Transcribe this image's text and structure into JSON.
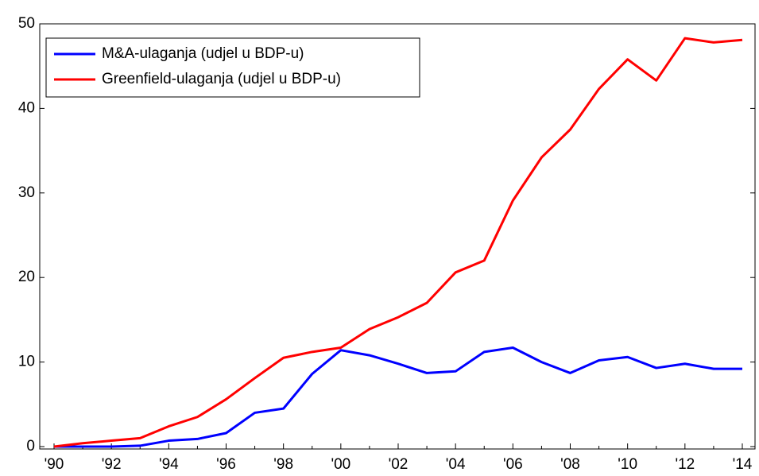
{
  "chart_data": {
    "type": "line",
    "categories": [
      "'90",
      null,
      "'92",
      null,
      "'94",
      null,
      "'96",
      null,
      "'98",
      null,
      "'00",
      null,
      "'02",
      null,
      "'04",
      null,
      "'06",
      null,
      "'08",
      null,
      "'10",
      null,
      "'12",
      null,
      "'14"
    ],
    "series": [
      {
        "name": "M&A-ulaganja (udjel u BDP-u)",
        "color": "#0000ff",
        "values": [
          0,
          0,
          0,
          0.1,
          0.7,
          0.9,
          1.6,
          4.0,
          4.5,
          8.6,
          11.4,
          10.8,
          9.8,
          8.7,
          8.9,
          11.2,
          11.7,
          10.0,
          8.7,
          10.2,
          10.6,
          9.3,
          9.8,
          9.2,
          9.2
        ]
      },
      {
        "name": "Greenfield-ulaganja (udjel u BDP-u)",
        "color": "#ff0000",
        "values": [
          0,
          0.4,
          0.7,
          1.0,
          2.4,
          3.5,
          5.6,
          8.1,
          10.5,
          11.2,
          11.7,
          13.9,
          15.3,
          17.0,
          20.6,
          22.0,
          29.1,
          34.2,
          37.5,
          42.3,
          45.8,
          43.3,
          48.3,
          47.8,
          48.1
        ]
      }
    ],
    "ylim": [
      0,
      50
    ],
    "yticks": [
      0,
      10,
      20,
      30,
      40,
      50
    ],
    "legend": "upper left"
  }
}
